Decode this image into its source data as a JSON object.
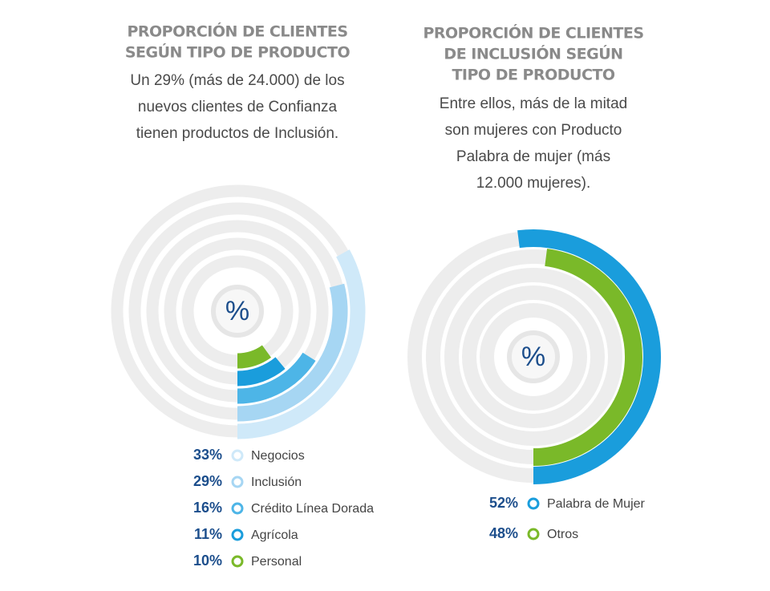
{
  "chart_data": [
    {
      "type": "radial_bar",
      "title": [
        "PROPORCIÓN DE CLIENTES",
        "SEGÚN TIPO DE PRODUCTO"
      ],
      "subtitle": [
        "Un 29% (más de 24.000) de los",
        "nuevos clientes de Confianza",
        "tienen productos de Inclusión."
      ],
      "center_label": "%",
      "categories": [
        "Negocios",
        "Inclusión",
        "Crédito Línea Dorada",
        "Agrícola",
        "Personal"
      ],
      "values": [
        33,
        29,
        16,
        11,
        10
      ],
      "value_labels": [
        "33%",
        "29%",
        "16%",
        "11%",
        "10%"
      ],
      "colors": [
        "#cfe9f9",
        "#a6d6f3",
        "#4db5e7",
        "#1a9ddc",
        "#7ab929"
      ]
    },
    {
      "type": "radial_bar",
      "title": [
        "PROPORCIÓN DE CLIENTES",
        "DE INCLUSIÓN SEGÚN",
        "TIPO DE PRODUCTO"
      ],
      "subtitle": [
        "Entre ellos, más de la mitad",
        "son mujeres con Producto",
        "Palabra de mujer (más",
        "12.000 mujeres)."
      ],
      "center_label": "%",
      "categories": [
        "Palabra de Mujer",
        "Otros"
      ],
      "values": [
        52,
        48
      ],
      "value_labels": [
        "52%",
        "48%"
      ],
      "colors": [
        "#1a9ddc",
        "#7ab929"
      ]
    }
  ]
}
